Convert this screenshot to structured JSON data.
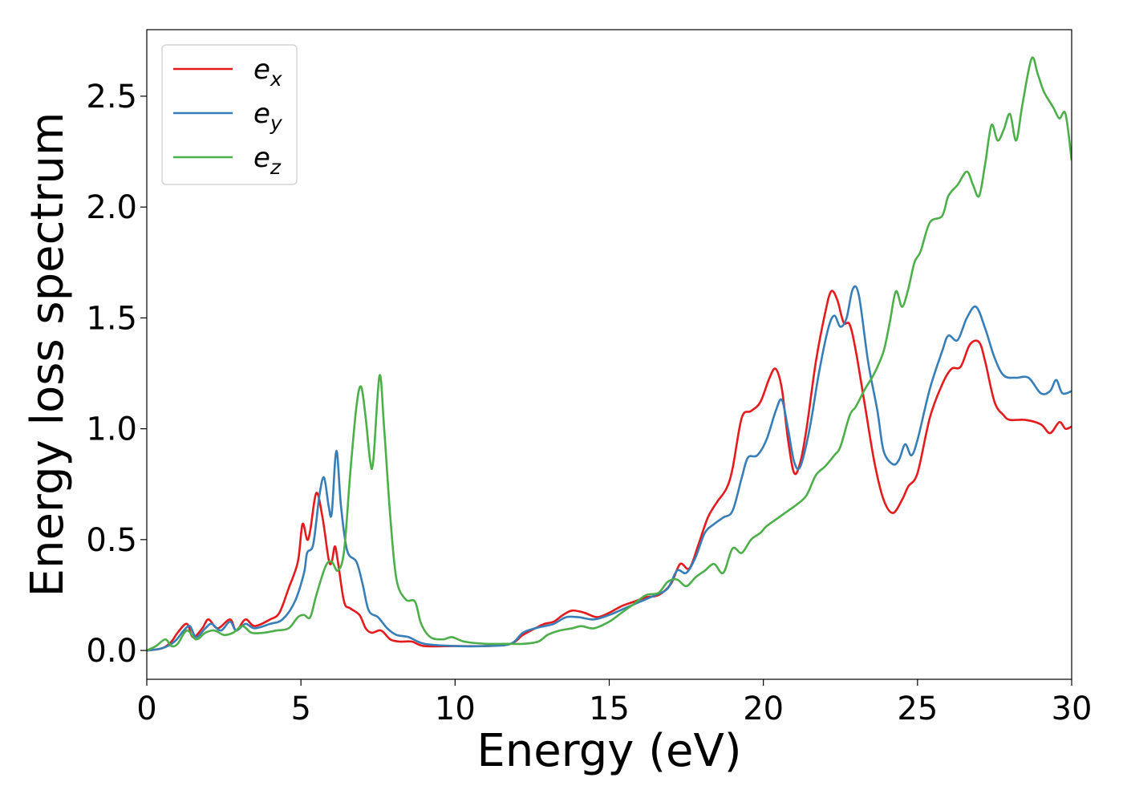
{
  "chart_data": {
    "type": "line",
    "title": "",
    "xlabel": "Energy (eV)",
    "ylabel": "Energy loss spectrum",
    "xlim": [
      0,
      30
    ],
    "ylim": [
      -0.13,
      2.8
    ],
    "xticks": [
      0,
      5,
      10,
      15,
      20,
      25,
      30
    ],
    "xtick_labels": [
      "0",
      "5",
      "10",
      "15",
      "20",
      "25",
      "30"
    ],
    "yticks": [
      0.0,
      0.5,
      1.0,
      1.5,
      2.0,
      2.5
    ],
    "ytick_labels": [
      "0.0",
      "0.5",
      "1.0",
      "1.5",
      "2.0",
      "2.5"
    ],
    "grid": false,
    "legend_position": "top-left",
    "series": [
      {
        "name": "e_x",
        "legend_base": "e",
        "legend_sub": "x",
        "color": "#e41a1c",
        "points": [
          [
            0,
            0
          ],
          [
            0.5,
            0.01
          ],
          [
            0.8,
            0.04
          ],
          [
            1.0,
            0.08
          ],
          [
            1.3,
            0.12
          ],
          [
            1.5,
            0.06
          ],
          [
            1.8,
            0.1
          ],
          [
            2.0,
            0.14
          ],
          [
            2.3,
            0.1
          ],
          [
            2.7,
            0.14
          ],
          [
            2.9,
            0.09
          ],
          [
            3.2,
            0.14
          ],
          [
            3.5,
            0.11
          ],
          [
            4.0,
            0.14
          ],
          [
            4.3,
            0.17
          ],
          [
            4.6,
            0.28
          ],
          [
            4.9,
            0.4
          ],
          [
            5.05,
            0.57
          ],
          [
            5.2,
            0.5
          ],
          [
            5.3,
            0.54
          ],
          [
            5.5,
            0.71
          ],
          [
            5.7,
            0.6
          ],
          [
            5.9,
            0.41
          ],
          [
            6.0,
            0.4
          ],
          [
            6.1,
            0.47
          ],
          [
            6.2,
            0.4
          ],
          [
            6.4,
            0.22
          ],
          [
            6.6,
            0.19
          ],
          [
            6.9,
            0.16
          ],
          [
            7.1,
            0.1
          ],
          [
            7.3,
            0.08
          ],
          [
            7.6,
            0.09
          ],
          [
            7.9,
            0.05
          ],
          [
            8.2,
            0.04
          ],
          [
            8.6,
            0.04
          ],
          [
            9.0,
            0.02
          ],
          [
            10,
            0.02
          ],
          [
            11,
            0.02
          ],
          [
            11.8,
            0.03
          ],
          [
            12.2,
            0.07
          ],
          [
            12.6,
            0.1
          ],
          [
            12.9,
            0.12
          ],
          [
            13.2,
            0.13
          ],
          [
            13.5,
            0.16
          ],
          [
            13.8,
            0.18
          ],
          [
            14.2,
            0.17
          ],
          [
            14.6,
            0.15
          ],
          [
            15.0,
            0.17
          ],
          [
            15.4,
            0.2
          ],
          [
            15.8,
            0.22
          ],
          [
            16.2,
            0.24
          ],
          [
            16.6,
            0.25
          ],
          [
            17.0,
            0.3
          ],
          [
            17.3,
            0.39
          ],
          [
            17.6,
            0.37
          ],
          [
            17.9,
            0.48
          ],
          [
            18.2,
            0.6
          ],
          [
            18.5,
            0.67
          ],
          [
            18.8,
            0.73
          ],
          [
            19.0,
            0.82
          ],
          [
            19.3,
            1.05
          ],
          [
            19.6,
            1.08
          ],
          [
            19.9,
            1.12
          ],
          [
            20.2,
            1.23
          ],
          [
            20.4,
            1.27
          ],
          [
            20.6,
            1.18
          ],
          [
            20.8,
            0.95
          ],
          [
            21.0,
            0.8
          ],
          [
            21.2,
            0.85
          ],
          [
            21.4,
            1.0
          ],
          [
            21.7,
            1.3
          ],
          [
            22.0,
            1.52
          ],
          [
            22.2,
            1.62
          ],
          [
            22.4,
            1.58
          ],
          [
            22.6,
            1.48
          ],
          [
            22.8,
            1.47
          ],
          [
            23.0,
            1.35
          ],
          [
            23.3,
            1.1
          ],
          [
            23.6,
            0.85
          ],
          [
            23.9,
            0.68
          ],
          [
            24.2,
            0.62
          ],
          [
            24.5,
            0.68
          ],
          [
            24.7,
            0.74
          ],
          [
            25.0,
            0.8
          ],
          [
            25.4,
            1.05
          ],
          [
            25.8,
            1.2
          ],
          [
            26.1,
            1.27
          ],
          [
            26.4,
            1.28
          ],
          [
            26.7,
            1.38
          ],
          [
            27.0,
            1.39
          ],
          [
            27.2,
            1.3
          ],
          [
            27.5,
            1.12
          ],
          [
            27.8,
            1.06
          ],
          [
            28.0,
            1.04
          ],
          [
            28.5,
            1.04
          ],
          [
            29.0,
            1.02
          ],
          [
            29.3,
            0.98
          ],
          [
            29.6,
            1.03
          ],
          [
            29.8,
            1.0
          ],
          [
            30.0,
            1.01
          ]
        ]
      },
      {
        "name": "e_y",
        "legend_base": "e",
        "legend_sub": "y",
        "color": "#377eb8",
        "points": [
          [
            0,
            0
          ],
          [
            0.5,
            0.01
          ],
          [
            0.9,
            0.04
          ],
          [
            1.2,
            0.09
          ],
          [
            1.4,
            0.11
          ],
          [
            1.6,
            0.06
          ],
          [
            1.9,
            0.1
          ],
          [
            2.1,
            0.12
          ],
          [
            2.4,
            0.09
          ],
          [
            2.7,
            0.13
          ],
          [
            2.9,
            0.09
          ],
          [
            3.2,
            0.12
          ],
          [
            3.5,
            0.1
          ],
          [
            4.0,
            0.12
          ],
          [
            4.4,
            0.14
          ],
          [
            4.8,
            0.22
          ],
          [
            5.1,
            0.35
          ],
          [
            5.2,
            0.44
          ],
          [
            5.4,
            0.48
          ],
          [
            5.6,
            0.7
          ],
          [
            5.75,
            0.78
          ],
          [
            5.9,
            0.65
          ],
          [
            6.0,
            0.62
          ],
          [
            6.15,
            0.9
          ],
          [
            6.3,
            0.65
          ],
          [
            6.5,
            0.45
          ],
          [
            6.8,
            0.4
          ],
          [
            7.0,
            0.3
          ],
          [
            7.2,
            0.18
          ],
          [
            7.5,
            0.15
          ],
          [
            7.8,
            0.1
          ],
          [
            8.1,
            0.07
          ],
          [
            8.5,
            0.06
          ],
          [
            9.0,
            0.03
          ],
          [
            10,
            0.02
          ],
          [
            11,
            0.02
          ],
          [
            11.8,
            0.03
          ],
          [
            12.2,
            0.08
          ],
          [
            12.6,
            0.1
          ],
          [
            12.9,
            0.11
          ],
          [
            13.2,
            0.12
          ],
          [
            13.6,
            0.15
          ],
          [
            14.0,
            0.15
          ],
          [
            14.5,
            0.14
          ],
          [
            15.0,
            0.16
          ],
          [
            15.5,
            0.19
          ],
          [
            16.0,
            0.22
          ],
          [
            16.5,
            0.25
          ],
          [
            16.9,
            0.28
          ],
          [
            17.2,
            0.36
          ],
          [
            17.5,
            0.35
          ],
          [
            17.8,
            0.42
          ],
          [
            18.1,
            0.53
          ],
          [
            18.4,
            0.57
          ],
          [
            18.7,
            0.6
          ],
          [
            19.0,
            0.63
          ],
          [
            19.3,
            0.78
          ],
          [
            19.5,
            0.87
          ],
          [
            19.8,
            0.88
          ],
          [
            20.1,
            0.95
          ],
          [
            20.4,
            1.08
          ],
          [
            20.6,
            1.13
          ],
          [
            20.8,
            1.0
          ],
          [
            21.0,
            0.85
          ],
          [
            21.2,
            0.83
          ],
          [
            21.5,
            1.0
          ],
          [
            21.8,
            1.25
          ],
          [
            22.1,
            1.45
          ],
          [
            22.3,
            1.51
          ],
          [
            22.5,
            1.46
          ],
          [
            22.7,
            1.5
          ],
          [
            22.9,
            1.63
          ],
          [
            23.1,
            1.6
          ],
          [
            23.4,
            1.3
          ],
          [
            23.7,
            1.08
          ],
          [
            23.9,
            0.9
          ],
          [
            24.2,
            0.84
          ],
          [
            24.4,
            0.86
          ],
          [
            24.6,
            0.93
          ],
          [
            24.8,
            0.88
          ],
          [
            25.0,
            0.95
          ],
          [
            25.4,
            1.18
          ],
          [
            25.8,
            1.35
          ],
          [
            26.0,
            1.42
          ],
          [
            26.3,
            1.4
          ],
          [
            26.6,
            1.5
          ],
          [
            26.9,
            1.55
          ],
          [
            27.2,
            1.45
          ],
          [
            27.5,
            1.32
          ],
          [
            27.8,
            1.24
          ],
          [
            28.2,
            1.23
          ],
          [
            28.6,
            1.23
          ],
          [
            29.0,
            1.16
          ],
          [
            29.3,
            1.17
          ],
          [
            29.5,
            1.22
          ],
          [
            29.7,
            1.16
          ],
          [
            30.0,
            1.17
          ]
        ]
      },
      {
        "name": "e_z",
        "legend_base": "e",
        "legend_sub": "z",
        "color": "#4daf4a",
        "points": [
          [
            0,
            0
          ],
          [
            0.3,
            0.02
          ],
          [
            0.6,
            0.05
          ],
          [
            0.8,
            0.02
          ],
          [
            1.0,
            0.03
          ],
          [
            1.3,
            0.09
          ],
          [
            1.6,
            0.05
          ],
          [
            1.9,
            0.08
          ],
          [
            2.2,
            0.09
          ],
          [
            2.5,
            0.07
          ],
          [
            2.8,
            0.08
          ],
          [
            3.1,
            0.11
          ],
          [
            3.4,
            0.08
          ],
          [
            3.8,
            0.08
          ],
          [
            4.2,
            0.09
          ],
          [
            4.6,
            0.1
          ],
          [
            4.9,
            0.15
          ],
          [
            5.1,
            0.16
          ],
          [
            5.3,
            0.15
          ],
          [
            5.5,
            0.25
          ],
          [
            5.8,
            0.38
          ],
          [
            6.0,
            0.4
          ],
          [
            6.2,
            0.36
          ],
          [
            6.4,
            0.45
          ],
          [
            6.6,
            0.8
          ],
          [
            6.8,
            1.1
          ],
          [
            6.95,
            1.19
          ],
          [
            7.1,
            1.05
          ],
          [
            7.25,
            0.85
          ],
          [
            7.35,
            0.86
          ],
          [
            7.55,
            1.24
          ],
          [
            7.7,
            1.0
          ],
          [
            7.9,
            0.6
          ],
          [
            8.1,
            0.32
          ],
          [
            8.4,
            0.23
          ],
          [
            8.7,
            0.22
          ],
          [
            8.9,
            0.12
          ],
          [
            9.2,
            0.06
          ],
          [
            9.6,
            0.05
          ],
          [
            9.9,
            0.06
          ],
          [
            10.3,
            0.04
          ],
          [
            11,
            0.03
          ],
          [
            11.6,
            0.03
          ],
          [
            12.2,
            0.03
          ],
          [
            12.7,
            0.04
          ],
          [
            13.0,
            0.07
          ],
          [
            13.4,
            0.09
          ],
          [
            13.8,
            0.1
          ],
          [
            14.1,
            0.11
          ],
          [
            14.5,
            0.1
          ],
          [
            15.0,
            0.13
          ],
          [
            15.4,
            0.17
          ],
          [
            15.8,
            0.21
          ],
          [
            16.2,
            0.25
          ],
          [
            16.6,
            0.26
          ],
          [
            16.9,
            0.31
          ],
          [
            17.2,
            0.32
          ],
          [
            17.5,
            0.29
          ],
          [
            17.8,
            0.33
          ],
          [
            18.1,
            0.36
          ],
          [
            18.4,
            0.39
          ],
          [
            18.7,
            0.35
          ],
          [
            19.0,
            0.46
          ],
          [
            19.3,
            0.44
          ],
          [
            19.6,
            0.5
          ],
          [
            19.9,
            0.53
          ],
          [
            20.1,
            0.56
          ],
          [
            20.5,
            0.6
          ],
          [
            20.8,
            0.63
          ],
          [
            21.1,
            0.66
          ],
          [
            21.4,
            0.7
          ],
          [
            21.7,
            0.79
          ],
          [
            22.0,
            0.83
          ],
          [
            22.3,
            0.88
          ],
          [
            22.5,
            0.92
          ],
          [
            22.8,
            1.06
          ],
          [
            23.0,
            1.1
          ],
          [
            23.3,
            1.18
          ],
          [
            23.6,
            1.25
          ],
          [
            23.9,
            1.35
          ],
          [
            24.1,
            1.48
          ],
          [
            24.3,
            1.62
          ],
          [
            24.5,
            1.55
          ],
          [
            24.7,
            1.63
          ],
          [
            24.9,
            1.75
          ],
          [
            25.1,
            1.8
          ],
          [
            25.4,
            1.93
          ],
          [
            25.8,
            1.96
          ],
          [
            26.0,
            2.05
          ],
          [
            26.3,
            2.1
          ],
          [
            26.6,
            2.16
          ],
          [
            26.8,
            2.1
          ],
          [
            27.0,
            2.05
          ],
          [
            27.2,
            2.2
          ],
          [
            27.4,
            2.37
          ],
          [
            27.6,
            2.3
          ],
          [
            27.8,
            2.35
          ],
          [
            28.0,
            2.42
          ],
          [
            28.2,
            2.3
          ],
          [
            28.4,
            2.46
          ],
          [
            28.7,
            2.67
          ],
          [
            28.9,
            2.6
          ],
          [
            29.1,
            2.52
          ],
          [
            29.4,
            2.45
          ],
          [
            29.6,
            2.4
          ],
          [
            29.8,
            2.42
          ],
          [
            30.0,
            2.21
          ]
        ]
      }
    ]
  }
}
